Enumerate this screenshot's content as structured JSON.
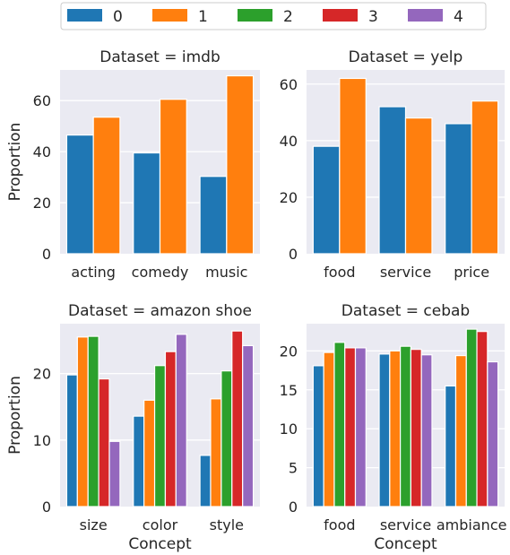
{
  "legend": {
    "position": "top-center",
    "entries": [
      {
        "label": "0",
        "color": "#1f77b4"
      },
      {
        "label": "1",
        "color": "#ff7f0e"
      },
      {
        "label": "2",
        "color": "#2ca02c"
      },
      {
        "label": "3",
        "color": "#d62728"
      },
      {
        "label": "4",
        "color": "#9467bd"
      }
    ]
  },
  "shared": {
    "xlabel": "Concept",
    "ylabel": "Proportion",
    "grid": true,
    "background": "#eaeaf2"
  },
  "chart_data": [
    {
      "type": "bar",
      "title": "Dataset = imdb",
      "categories": [
        "acting",
        "comedy",
        "music"
      ],
      "ylim": [
        0,
        72
      ],
      "yticks": [
        0,
        20,
        40,
        60
      ],
      "series": [
        {
          "name": "0",
          "values": [
            46.5,
            39.5,
            30.3
          ]
        },
        {
          "name": "1",
          "values": [
            53.5,
            60.5,
            69.7
          ]
        }
      ]
    },
    {
      "type": "bar",
      "title": "Dataset = yelp",
      "categories": [
        "food",
        "service",
        "price"
      ],
      "ylim": [
        0,
        65
      ],
      "yticks": [
        0,
        20,
        40,
        60
      ],
      "series": [
        {
          "name": "0",
          "values": [
            38.0,
            52.0,
            46.0
          ]
        },
        {
          "name": "1",
          "values": [
            62.0,
            48.0,
            54.0
          ]
        }
      ]
    },
    {
      "type": "bar",
      "title": "Dataset = amazon shoe",
      "categories": [
        "size",
        "color",
        "style"
      ],
      "ylim": [
        0,
        27.5
      ],
      "yticks": [
        0,
        10,
        20
      ],
      "series": [
        {
          "name": "0",
          "values": [
            19.8,
            13.6,
            7.7
          ]
        },
        {
          "name": "1",
          "values": [
            25.5,
            16.0,
            16.2
          ]
        },
        {
          "name": "2",
          "values": [
            25.6,
            21.2,
            20.4
          ]
        },
        {
          "name": "3",
          "values": [
            19.2,
            23.3,
            26.4
          ]
        },
        {
          "name": "4",
          "values": [
            9.8,
            25.9,
            24.2
          ]
        }
      ]
    },
    {
      "type": "bar",
      "title": "Dataset = cebab",
      "categories": [
        "food",
        "service",
        "ambiance"
      ],
      "ylim": [
        0,
        23.5
      ],
      "yticks": [
        0,
        5,
        10,
        15,
        20
      ],
      "series": [
        {
          "name": "0",
          "values": [
            18.1,
            19.6,
            15.5
          ]
        },
        {
          "name": "1",
          "values": [
            19.8,
            20.0,
            19.4
          ]
        },
        {
          "name": "2",
          "values": [
            21.1,
            20.6,
            22.8
          ]
        },
        {
          "name": "3",
          "values": [
            20.4,
            20.2,
            22.5
          ]
        },
        {
          "name": "4",
          "values": [
            20.4,
            19.5,
            18.6
          ]
        }
      ]
    }
  ]
}
